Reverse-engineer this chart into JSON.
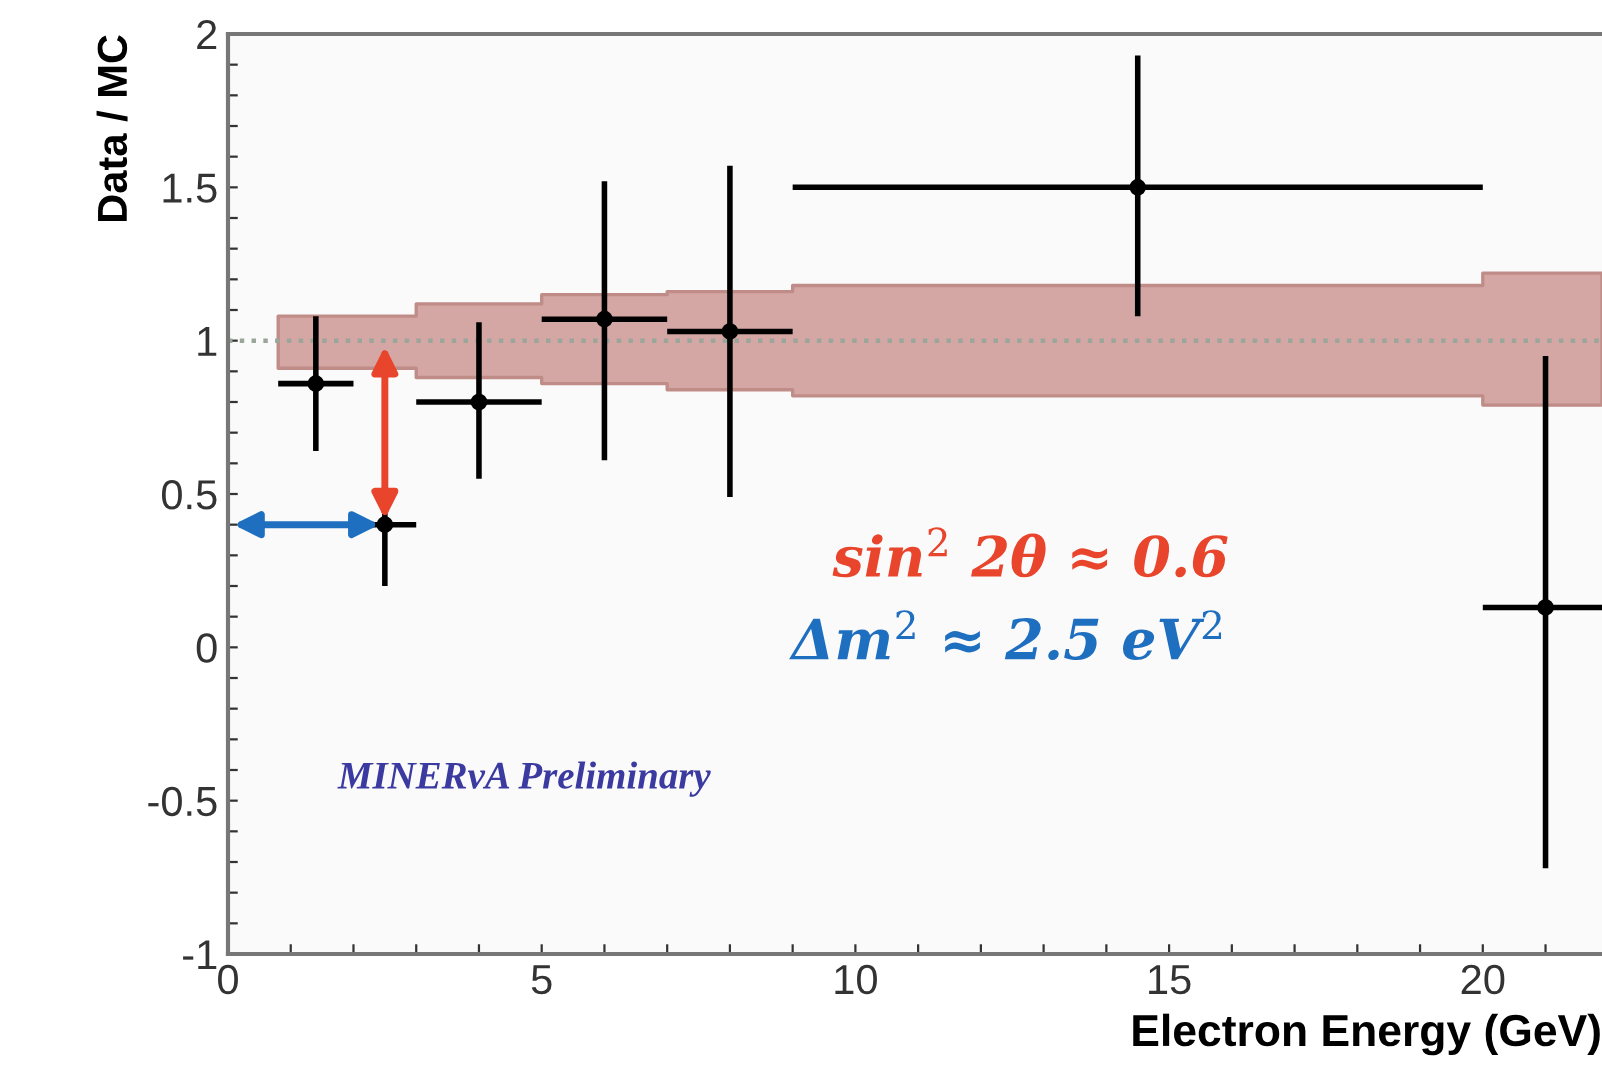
{
  "chart_data": {
    "type": "scatter",
    "xlabel": "Electron Energy (GeV)",
    "ylabel": "Data / MC",
    "xlim": [
      0,
      21.9
    ],
    "ylim": [
      -1,
      2
    ],
    "xticks": [
      0,
      {
        "value": 1,
        "label": null
      },
      {
        "value": 2,
        "label": null
      },
      {
        "value": 3,
        "label": null
      },
      {
        "value": 4,
        "label": null
      },
      5,
      {
        "value": 6,
        "label": null
      },
      {
        "value": 7,
        "label": null
      },
      {
        "value": 8,
        "label": null
      },
      {
        "value": 9,
        "label": null
      },
      10,
      {
        "value": 11,
        "label": null
      },
      {
        "value": 12,
        "label": null
      },
      {
        "value": 13,
        "label": null
      },
      {
        "value": 14,
        "label": null
      },
      15,
      {
        "value": 16,
        "label": null
      },
      {
        "value": 17,
        "label": null
      },
      {
        "value": 18,
        "label": null
      },
      {
        "value": 19,
        "label": null
      },
      20,
      {
        "value": 21,
        "label": null
      }
    ],
    "yticks": [
      -1,
      {
        "value": -0.9,
        "label": null
      },
      {
        "value": -0.8,
        "label": null
      },
      {
        "value": -0.7,
        "label": null
      },
      {
        "value": -0.6,
        "label": null
      },
      -0.5,
      {
        "value": -0.4,
        "label": null
      },
      {
        "value": -0.3,
        "label": null
      },
      {
        "value": -0.2,
        "label": null
      },
      {
        "value": -0.1,
        "label": null
      },
      0,
      {
        "value": 0.1,
        "label": null
      },
      {
        "value": 0.2,
        "label": null
      },
      {
        "value": 0.3,
        "label": null
      },
      {
        "value": 0.4,
        "label": null
      },
      0.5,
      {
        "value": 0.6,
        "label": null
      },
      {
        "value": 0.7,
        "label": null
      },
      {
        "value": 0.8,
        "label": null
      },
      {
        "value": 0.9,
        "label": null
      },
      1,
      {
        "value": 1.1,
        "label": null
      },
      {
        "value": 1.2,
        "label": null
      },
      {
        "value": 1.3,
        "label": null
      },
      {
        "value": 1.4,
        "label": null
      },
      1.5,
      {
        "value": 1.6,
        "label": null
      },
      {
        "value": 1.7,
        "label": null
      },
      {
        "value": 1.8,
        "label": null
      },
      {
        "value": 1.9,
        "label": null
      },
      2
    ],
    "grid": false,
    "legend": false,
    "marker": "circle",
    "annotations": [
      "sin$^{2}$ 2θ ≈ 0.6",
      "Δm$^{2}$ ≈ 2.5 eV$^{2}$",
      "MINERvA Preliminary"
    ],
    "series": [
      {
        "type": "step",
        "marker": "none",
        "color": "#9aa69a",
        "line_style": "dotted",
        "x": [
          0,
          0.8,
          3,
          5,
          7,
          9,
          20,
          21.9
        ],
        "values": [
          1,
          1,
          1,
          1,
          1,
          1,
          1,
          1
        ],
        "lower": [
          null,
          0.91,
          0.88,
          0.86,
          0.84,
          0.82,
          0.79,
          0.79
        ],
        "upper": [
          null,
          1.08,
          1.12,
          1.15,
          1.16,
          1.18,
          1.22,
          1.22
        ]
      },
      {
        "color": "#000000",
        "x": [
          1.4,
          2.5,
          4.0,
          6.0,
          8.0,
          14.5,
          21.0
        ],
        "values": [
          0.86,
          0.4,
          0.8,
          1.07,
          1.03,
          1.5,
          0.13
        ],
        "errors": [
          [
            0.64,
            1.08
          ],
          [
            0.2,
            0.57
          ],
          [
            0.55,
            1.06
          ],
          [
            0.61,
            1.52
          ],
          [
            0.49,
            1.57
          ],
          [
            1.08,
            1.93
          ],
          [
            -0.72,
            0.95
          ]
        ],
        "xerrors": [
          [
            0.8,
            2.0
          ],
          [
            2.2,
            3.0
          ],
          [
            3.0,
            5.0
          ],
          [
            5.0,
            7.0
          ],
          [
            7.0,
            9.0
          ],
          [
            9.0,
            20.0
          ],
          [
            20.0,
            21.9
          ]
        ]
      }
    ]
  }
}
